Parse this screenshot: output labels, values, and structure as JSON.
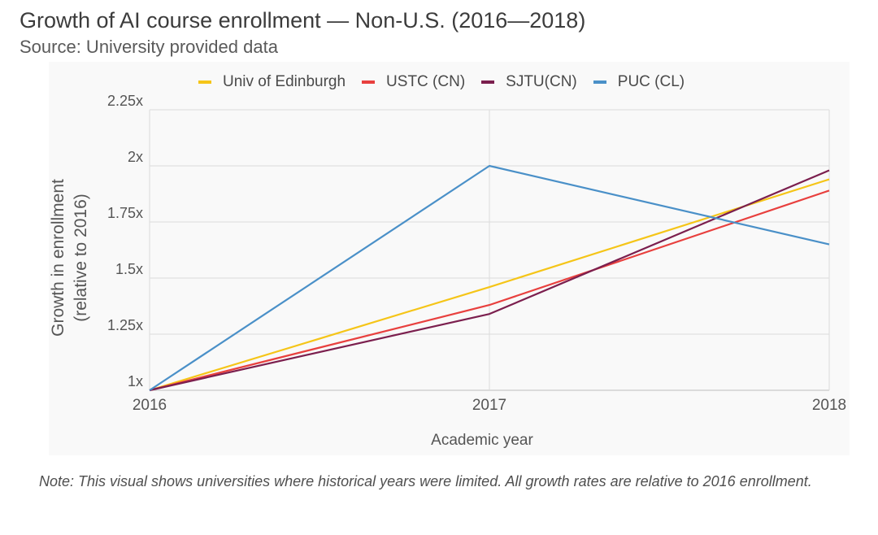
{
  "header": {
    "title": "Growth of AI course enrollment — Non-U.S. (2016—2018)",
    "subtitle": "Source: University provided data"
  },
  "note": "Note: This visual shows universities where historical years were limited. All growth rates are relative to 2016 enrollment.",
  "chart_data": {
    "type": "line",
    "title": "Growth of AI course enrollment — Non-U.S. (2016—2018)",
    "xlabel": "Academic year",
    "ylabel_lines": [
      "Growth in enrollment",
      "(relative to 2016)"
    ],
    "categories": [
      "2016",
      "2017",
      "2018"
    ],
    "y_ticks": [
      1,
      1.25,
      1.5,
      1.75,
      2,
      2.25
    ],
    "y_tick_labels": [
      "1x",
      "1.25x",
      "1.5x",
      "1.75x",
      "2x",
      "2.25x"
    ],
    "ylim": [
      1,
      2.25
    ],
    "grid": true,
    "legend_position": "top",
    "series": [
      {
        "name": "Univ of Edinburgh",
        "color": "#f5c518",
        "values": [
          1.0,
          1.46,
          1.94
        ]
      },
      {
        "name": "USTC (CN)",
        "color": "#e8403e",
        "values": [
          1.0,
          1.38,
          1.89
        ]
      },
      {
        "name": "SJTU(CN)",
        "color": "#7b1f4e",
        "values": [
          1.0,
          1.34,
          1.98
        ]
      },
      {
        "name": "PUC (CL)",
        "color": "#4a90c8",
        "values": [
          1.0,
          2.0,
          1.65
        ]
      }
    ]
  }
}
